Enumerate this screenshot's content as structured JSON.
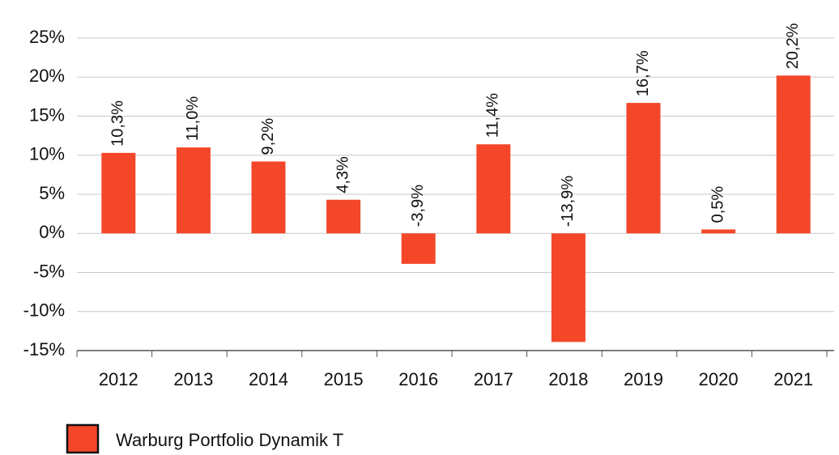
{
  "chart_data": {
    "type": "bar",
    "categories": [
      "2012",
      "2013",
      "2014",
      "2015",
      "2016",
      "2017",
      "2018",
      "2019",
      "2020",
      "2021"
    ],
    "series": [
      {
        "name": "Warburg Portfolio Dynamik T",
        "color": "#f4472a",
        "values": [
          10.3,
          11.0,
          9.2,
          4.3,
          -3.9,
          11.4,
          -13.9,
          16.7,
          0.5,
          20.2
        ],
        "value_labels": [
          "10,3%",
          "11,0%",
          "9,2%",
          "4,3%",
          "-3,9%",
          "11,4%",
          "-13,9%",
          "16,7%",
          "0,5%",
          "20,2%"
        ]
      }
    ],
    "ylim": [
      -15,
      25
    ],
    "yticks": [
      {
        "value": -15,
        "label": "-15%"
      },
      {
        "value": -10,
        "label": "-10%"
      },
      {
        "value": -5,
        "label": "-5%"
      },
      {
        "value": 0,
        "label": "0%"
      },
      {
        "value": 5,
        "label": "5%"
      },
      {
        "value": 10,
        "label": "10%"
      },
      {
        "value": 15,
        "label": "15%"
      },
      {
        "value": 20,
        "label": "20%"
      },
      {
        "value": 25,
        "label": "25%"
      }
    ],
    "grid": true,
    "legend": "bottom-left"
  }
}
